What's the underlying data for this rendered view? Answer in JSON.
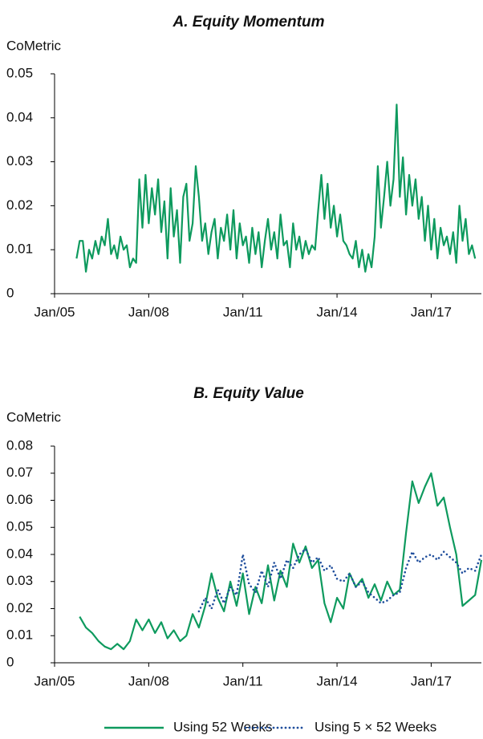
{
  "chart_data": [
    {
      "type": "line",
      "title": "A. Equity Momentum",
      "ylabel": "CoMetric",
      "xlim": [
        2005,
        2018.6
      ],
      "xticks": [
        {
          "value": 2005,
          "label": "Jan/05"
        },
        {
          "value": 2008,
          "label": "Jan/08"
        },
        {
          "value": 2011,
          "label": "Jan/11"
        },
        {
          "value": 2014,
          "label": "Jan/14"
        },
        {
          "value": 2017,
          "label": "Jan/17"
        }
      ],
      "ylim": [
        0,
        0.05
      ],
      "yticks": [
        0,
        0.01,
        0.02,
        0.03,
        0.04,
        0.05
      ],
      "grid": false,
      "series": [
        {
          "color": "#0e9a5e",
          "style": "solid",
          "x": [
            2005.7,
            2005.8,
            2005.9,
            2006.0,
            2006.1,
            2006.2,
            2006.3,
            2006.4,
            2006.5,
            2006.6,
            2006.7,
            2006.8,
            2006.9,
            2007.0,
            2007.1,
            2007.2,
            2007.3,
            2007.4,
            2007.5,
            2007.6,
            2007.7,
            2007.8,
            2007.9,
            2008.0,
            2008.1,
            2008.2,
            2008.3,
            2008.4,
            2008.5,
            2008.6,
            2008.7,
            2008.8,
            2008.9,
            2009.0,
            2009.1,
            2009.2,
            2009.3,
            2009.4,
            2009.5,
            2009.6,
            2009.7,
            2009.8,
            2009.9,
            2010.0,
            2010.1,
            2010.2,
            2010.3,
            2010.4,
            2010.5,
            2010.6,
            2010.7,
            2010.8,
            2010.9,
            2011.0,
            2011.1,
            2011.2,
            2011.3,
            2011.4,
            2011.5,
            2011.6,
            2011.7,
            2011.8,
            2011.9,
            2012.0,
            2012.1,
            2012.2,
            2012.3,
            2012.4,
            2012.5,
            2012.6,
            2012.7,
            2012.8,
            2012.9,
            2013.0,
            2013.1,
            2013.2,
            2013.3,
            2013.4,
            2013.5,
            2013.6,
            2013.7,
            2013.8,
            2013.9,
            2014.0,
            2014.1,
            2014.2,
            2014.3,
            2014.4,
            2014.5,
            2014.6,
            2014.7,
            2014.8,
            2014.9,
            2015.0,
            2015.1,
            2015.2,
            2015.3,
            2015.4,
            2015.5,
            2015.6,
            2015.7,
            2015.8,
            2015.9,
            2016.0,
            2016.1,
            2016.2,
            2016.3,
            2016.4,
            2016.5,
            2016.6,
            2016.7,
            2016.8,
            2016.9,
            2017.0,
            2017.1,
            2017.2,
            2017.3,
            2017.4,
            2017.5,
            2017.6,
            2017.7,
            2017.8,
            2017.9,
            2018.0,
            2018.1,
            2018.2,
            2018.3,
            2018.4
          ],
          "values": [
            0.008,
            0.012,
            0.012,
            0.005,
            0.01,
            0.008,
            0.012,
            0.009,
            0.013,
            0.011,
            0.017,
            0.009,
            0.011,
            0.008,
            0.013,
            0.01,
            0.011,
            0.006,
            0.008,
            0.007,
            0.026,
            0.015,
            0.027,
            0.016,
            0.024,
            0.018,
            0.026,
            0.014,
            0.021,
            0.008,
            0.024,
            0.013,
            0.019,
            0.007,
            0.022,
            0.025,
            0.012,
            0.016,
            0.029,
            0.022,
            0.012,
            0.016,
            0.009,
            0.014,
            0.017,
            0.008,
            0.015,
            0.012,
            0.018,
            0.01,
            0.019,
            0.008,
            0.016,
            0.011,
            0.013,
            0.007,
            0.015,
            0.009,
            0.014,
            0.006,
            0.012,
            0.017,
            0.01,
            0.014,
            0.008,
            0.018,
            0.011,
            0.012,
            0.006,
            0.016,
            0.01,
            0.013,
            0.008,
            0.012,
            0.009,
            0.011,
            0.01,
            0.019,
            0.027,
            0.017,
            0.025,
            0.015,
            0.02,
            0.013,
            0.018,
            0.012,
            0.011,
            0.009,
            0.008,
            0.012,
            0.006,
            0.01,
            0.005,
            0.009,
            0.006,
            0.013,
            0.029,
            0.015,
            0.022,
            0.03,
            0.02,
            0.026,
            0.043,
            0.022,
            0.031,
            0.018,
            0.027,
            0.02,
            0.026,
            0.017,
            0.022,
            0.012,
            0.02,
            0.01,
            0.017,
            0.008,
            0.015,
            0.011,
            0.013,
            0.009,
            0.014,
            0.007,
            0.02,
            0.012,
            0.017,
            0.009,
            0.011,
            0.008
          ]
        }
      ]
    },
    {
      "type": "line",
      "title": "B. Equity Value",
      "ylabel": "CoMetric",
      "xlim": [
        2005,
        2018.6
      ],
      "xticks": [
        {
          "value": 2005,
          "label": "Jan/05"
        },
        {
          "value": 2008,
          "label": "Jan/08"
        },
        {
          "value": 2011,
          "label": "Jan/11"
        },
        {
          "value": 2014,
          "label": "Jan/14"
        },
        {
          "value": 2017,
          "label": "Jan/17"
        }
      ],
      "ylim": [
        0,
        0.08
      ],
      "yticks": [
        0,
        0.01,
        0.02,
        0.03,
        0.04,
        0.05,
        0.06,
        0.07,
        0.08
      ],
      "grid": false,
      "legend": "bottom",
      "series": [
        {
          "name": "Using 52 Weeks",
          "color": "#0e9a5e",
          "style": "solid",
          "x": [
            2005.8,
            2006.0,
            2006.2,
            2006.4,
            2006.6,
            2006.8,
            2007.0,
            2007.2,
            2007.4,
            2007.6,
            2007.8,
            2008.0,
            2008.2,
            2008.4,
            2008.6,
            2008.8,
            2009.0,
            2009.2,
            2009.4,
            2009.6,
            2009.8,
            2010.0,
            2010.2,
            2010.4,
            2010.6,
            2010.8,
            2011.0,
            2011.2,
            2011.4,
            2011.6,
            2011.8,
            2012.0,
            2012.2,
            2012.4,
            2012.6,
            2012.8,
            2013.0,
            2013.2,
            2013.4,
            2013.6,
            2013.8,
            2014.0,
            2014.2,
            2014.4,
            2014.6,
            2014.8,
            2015.0,
            2015.2,
            2015.4,
            2015.6,
            2015.8,
            2016.0,
            2016.2,
            2016.4,
            2016.6,
            2016.8,
            2017.0,
            2017.2,
            2017.4,
            2017.6,
            2017.8,
            2018.0,
            2018.2,
            2018.4,
            2018.6
          ],
          "values": [
            0.017,
            0.013,
            0.011,
            0.008,
            0.006,
            0.005,
            0.007,
            0.005,
            0.008,
            0.016,
            0.012,
            0.016,
            0.011,
            0.015,
            0.009,
            0.012,
            0.008,
            0.01,
            0.018,
            0.013,
            0.021,
            0.033,
            0.024,
            0.019,
            0.03,
            0.021,
            0.033,
            0.018,
            0.028,
            0.022,
            0.036,
            0.023,
            0.034,
            0.028,
            0.044,
            0.037,
            0.043,
            0.035,
            0.038,
            0.022,
            0.015,
            0.024,
            0.02,
            0.033,
            0.028,
            0.031,
            0.024,
            0.029,
            0.023,
            0.03,
            0.025,
            0.027,
            0.048,
            0.067,
            0.059,
            0.065,
            0.07,
            0.058,
            0.061,
            0.05,
            0.04,
            0.021,
            0.023,
            0.025,
            0.038
          ]
        },
        {
          "name": "Using 5 × 52 Weeks",
          "color": "#1f4e9c",
          "style": "dotted",
          "x": [
            2009.6,
            2009.8,
            2010.0,
            2010.2,
            2010.4,
            2010.6,
            2010.8,
            2011.0,
            2011.2,
            2011.4,
            2011.6,
            2011.8,
            2012.0,
            2012.2,
            2012.4,
            2012.6,
            2012.8,
            2013.0,
            2013.2,
            2013.4,
            2013.6,
            2013.8,
            2014.0,
            2014.2,
            2014.4,
            2014.6,
            2014.8,
            2015.0,
            2015.2,
            2015.4,
            2015.6,
            2015.8,
            2016.0,
            2016.2,
            2016.4,
            2016.6,
            2016.8,
            2017.0,
            2017.2,
            2017.4,
            2017.6,
            2017.8,
            2018.0,
            2018.2,
            2018.4,
            2018.6
          ],
          "values": [
            0.019,
            0.024,
            0.02,
            0.027,
            0.022,
            0.028,
            0.025,
            0.04,
            0.029,
            0.026,
            0.034,
            0.028,
            0.037,
            0.031,
            0.038,
            0.035,
            0.04,
            0.042,
            0.037,
            0.039,
            0.034,
            0.036,
            0.031,
            0.03,
            0.033,
            0.028,
            0.03,
            0.026,
            0.024,
            0.022,
            0.023,
            0.025,
            0.026,
            0.035,
            0.041,
            0.037,
            0.039,
            0.04,
            0.038,
            0.041,
            0.039,
            0.037,
            0.033,
            0.035,
            0.034,
            0.04
          ]
        }
      ]
    }
  ]
}
